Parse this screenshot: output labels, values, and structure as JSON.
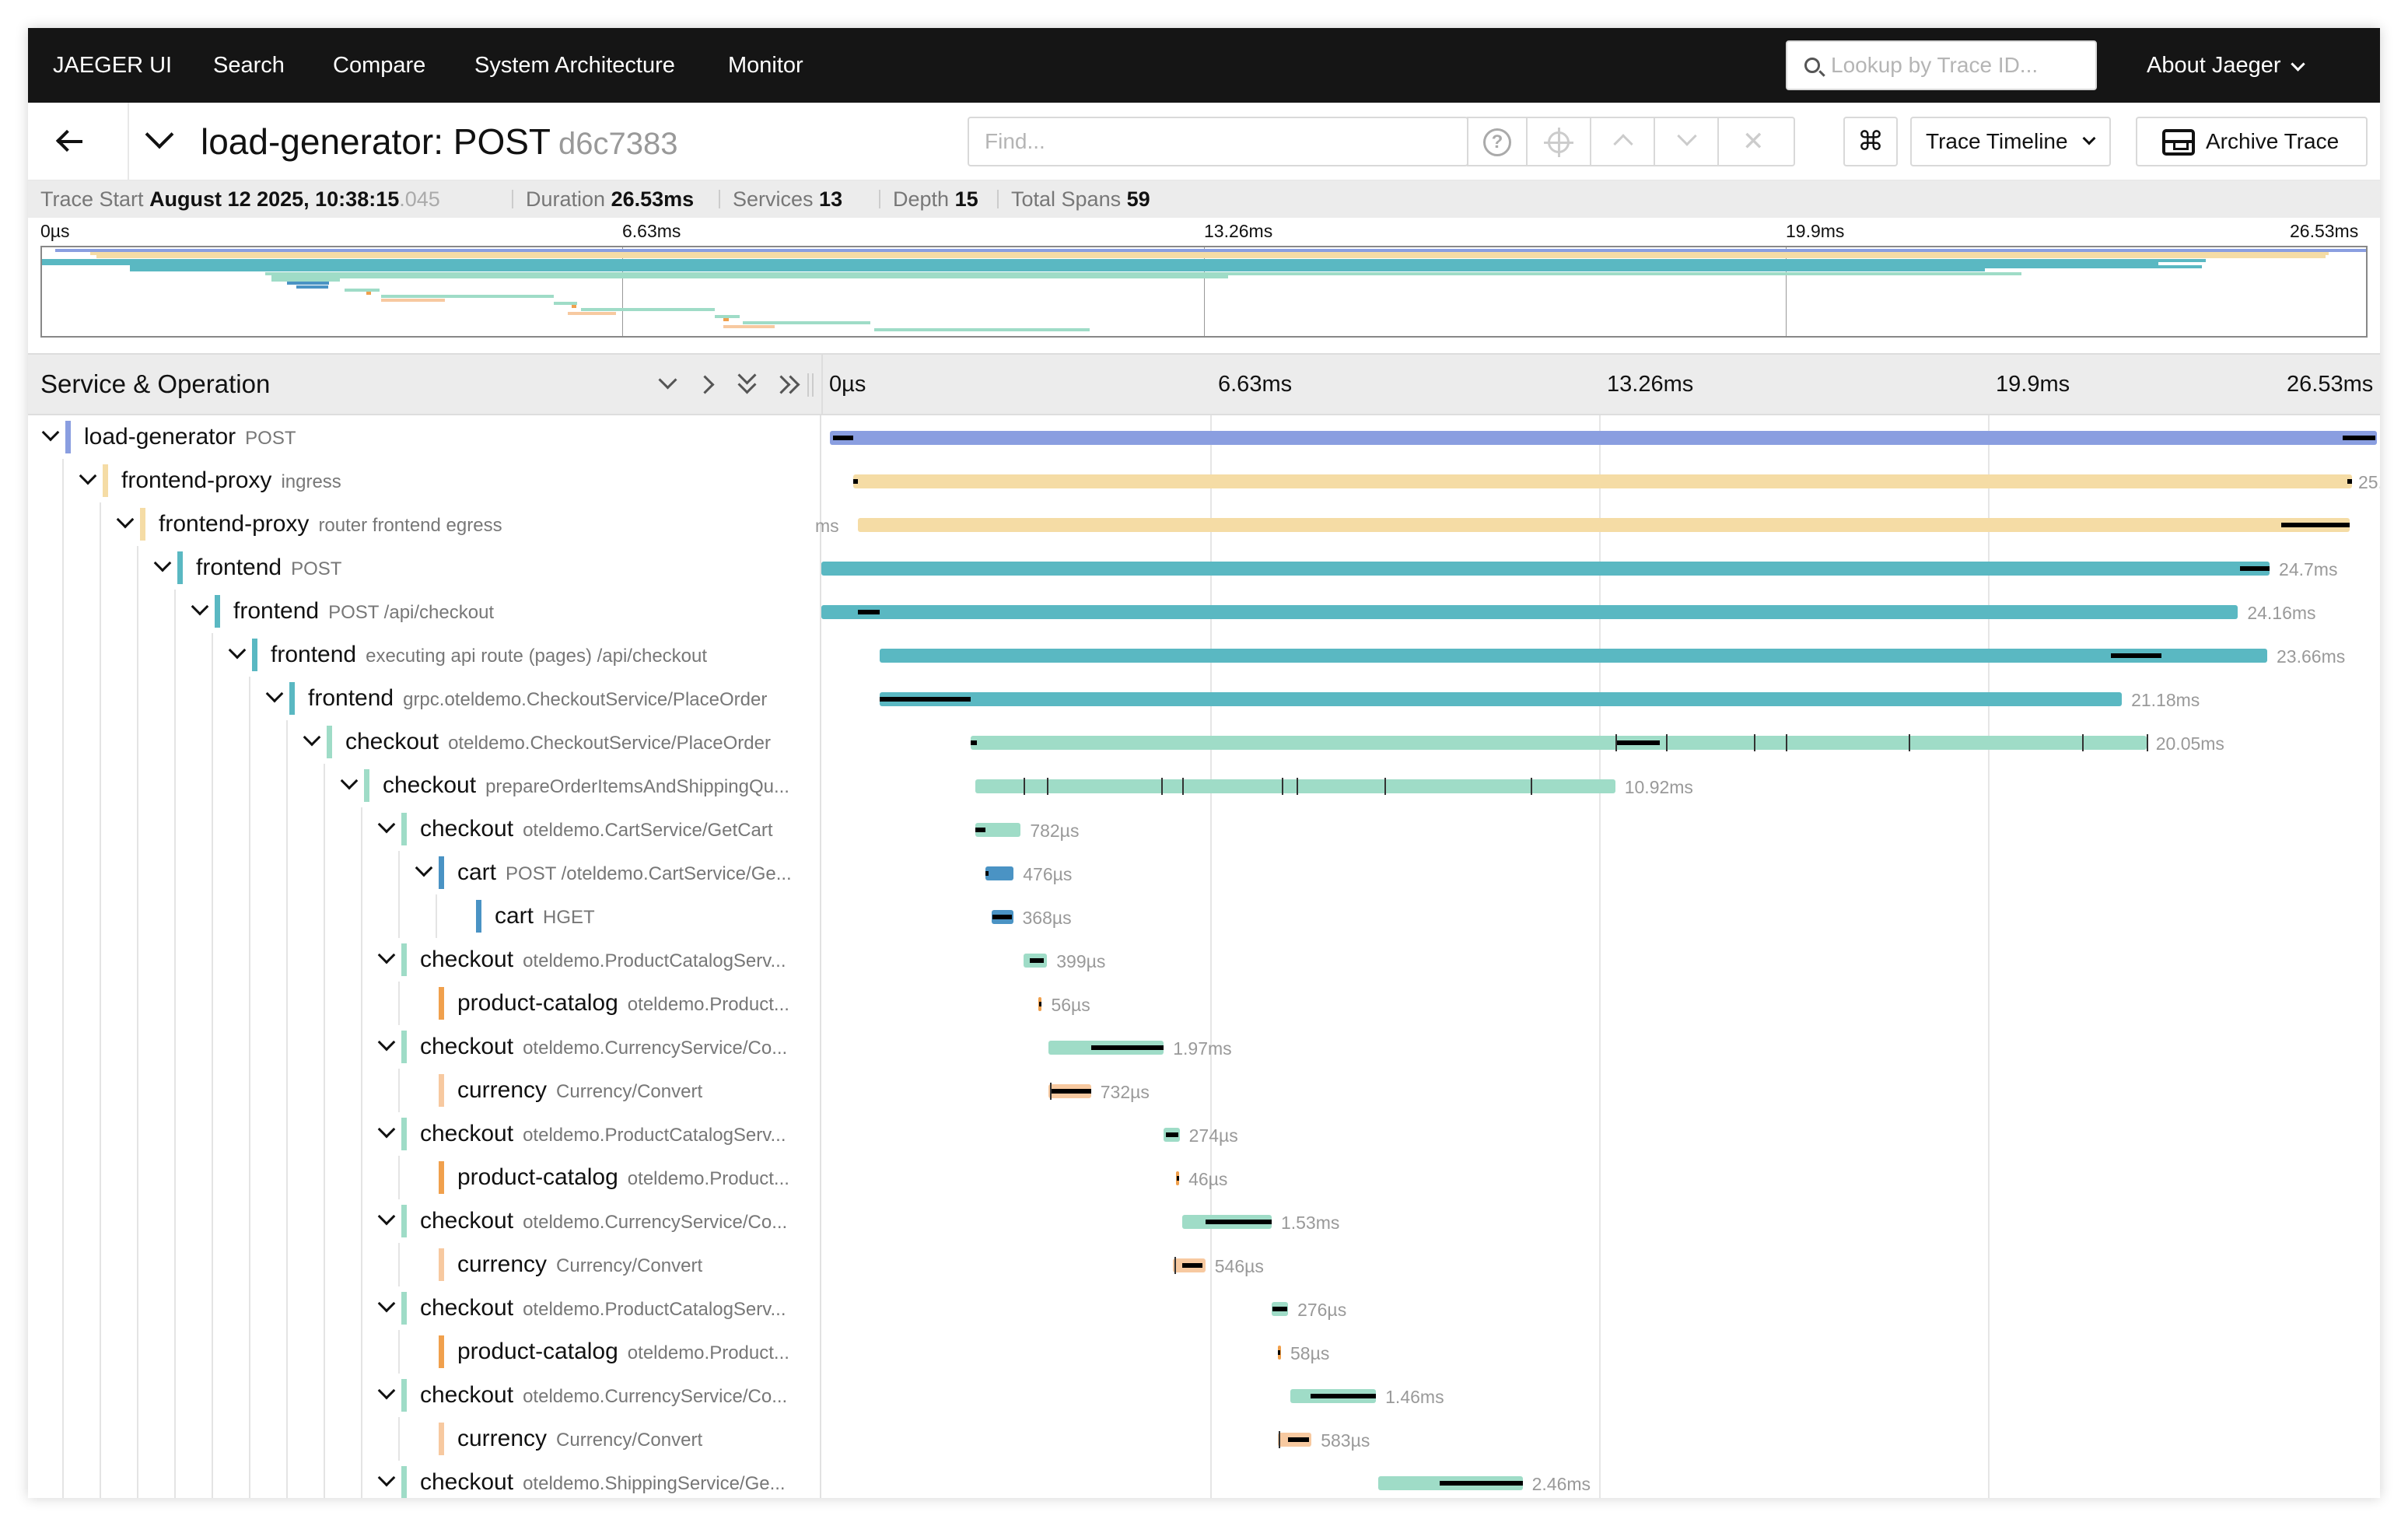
{
  "nav": {
    "brand": "JAEGER UI",
    "items": [
      "Search",
      "Compare",
      "System Architecture",
      "Monitor"
    ],
    "lookup_placeholder": "Lookup by Trace ID...",
    "about": "About Jaeger"
  },
  "trace": {
    "title": "load-generator: POST",
    "trace_id": "d6c7383",
    "find_placeholder": "Find...",
    "view_select": "Trace Timeline",
    "archive_label": "Archive Trace",
    "help_glyph": "?",
    "clear_glyph": "✕",
    "kbd_glyph": "⌘"
  },
  "summary": {
    "start_label": "Trace Start",
    "start_value": "August 12 2025, 10:38:15",
    "start_ms": ".045",
    "duration_label": "Duration",
    "duration_value": "26.53ms",
    "services_label": "Services",
    "services_value": "13",
    "depth_label": "Depth",
    "depth_value": "15",
    "spans_label": "Total Spans",
    "spans_value": "59"
  },
  "ticks": [
    "0µs",
    "6.63ms",
    "13.26ms",
    "19.9ms",
    "26.53ms"
  ],
  "timeline": {
    "header_title": "Service & Operation",
    "total_ms": 26.53
  },
  "colors": {
    "load-generator": "#8a9ee0",
    "frontend-proxy": "#f5dca5",
    "frontend": "#5ab8c2",
    "checkout": "#9fdcc7",
    "cart": "#4a93c4",
    "product-catalog": "#f0a04d",
    "currency": "#f7c9a0"
  },
  "spans": [
    {
      "depth": 0,
      "service": "load-generator",
      "op": "POST",
      "toggle": true,
      "start_ms": 0.15,
      "dur_ms": 26.53,
      "label": "",
      "self": [
        [
          0.2,
          0.55
        ],
        [
          25.95,
          26.5
        ]
      ]
    },
    {
      "depth": 1,
      "service": "frontend-proxy",
      "op": "ingress",
      "toggle": true,
      "start_ms": 0.55,
      "dur_ms": 25.55,
      "label": "25.",
      "label_pos": "right-edge",
      "self": [
        [
          0.55,
          0.62
        ],
        [
          26.02,
          26.1
        ]
      ]
    },
    {
      "depth": 2,
      "service": "frontend-proxy",
      "op": "router frontend egress",
      "toggle": true,
      "start_ms": 0.62,
      "dur_ms": 25.45,
      "label": "ms",
      "label_pos": "left-edge",
      "self": [
        [
          24.9,
          26.07
        ]
      ]
    },
    {
      "depth": 3,
      "service": "frontend",
      "op": "POST",
      "toggle": true,
      "start_ms": 0.0,
      "dur_ms": 24.7,
      "label": "24.7ms",
      "self": [
        [
          24.2,
          24.7
        ]
      ]
    },
    {
      "depth": 4,
      "service": "frontend",
      "op": "POST /api/checkout",
      "toggle": true,
      "start_ms": 0.0,
      "dur_ms": 24.16,
      "label": "24.16ms",
      "self": [
        [
          0.62,
          1.0
        ]
      ]
    },
    {
      "depth": 5,
      "service": "frontend",
      "op": "executing api route (pages) /api/checkout",
      "toggle": true,
      "start_ms": 1.0,
      "dur_ms": 23.66,
      "label": "23.66ms",
      "self": [
        [
          22.0,
          22.85
        ]
      ]
    },
    {
      "depth": 6,
      "service": "frontend",
      "op": "grpc.oteldemo.CheckoutService/PlaceOrder",
      "toggle": true,
      "start_ms": 1.0,
      "dur_ms": 21.18,
      "label": "21.18ms",
      "self": [
        [
          1.0,
          2.55
        ]
      ]
    },
    {
      "depth": 7,
      "service": "checkout",
      "op": "oteldemo.CheckoutService/PlaceOrder",
      "toggle": true,
      "start_ms": 2.55,
      "dur_ms": 20.05,
      "label": "20.05ms",
      "self": [
        [
          2.55,
          2.65
        ],
        [
          13.55,
          14.3
        ]
      ],
      "ticks": [
        13.55,
        14.4,
        15.9,
        16.45,
        18.55,
        21.5,
        22.6
      ]
    },
    {
      "depth": 8,
      "service": "checkout",
      "op": "prepareOrderItemsAndShippingQu...",
      "toggle": true,
      "start_ms": 2.62,
      "dur_ms": 10.92,
      "label": "10.92ms",
      "self": [],
      "ticks": [
        3.45,
        3.85,
        5.8,
        6.15,
        7.85,
        8.1,
        9.6,
        12.1
      ]
    },
    {
      "depth": 9,
      "service": "checkout",
      "op": "oteldemo.CartService/GetCart",
      "toggle": true,
      "start_ms": 2.62,
      "dur_ms": 0.78,
      "label": "782µs",
      "self": [
        [
          2.62,
          2.8
        ]
      ]
    },
    {
      "depth": 10,
      "service": "cart",
      "op": "POST /oteldemo.CartService/Ge...",
      "toggle": true,
      "start_ms": 2.8,
      "dur_ms": 0.48,
      "label": "476µs",
      "self": [
        [
          2.8,
          2.85
        ]
      ]
    },
    {
      "depth": 11,
      "service": "cart",
      "op": "HGET",
      "toggle": false,
      "start_ms": 2.9,
      "dur_ms": 0.37,
      "label": "368µs",
      "self": [
        [
          2.92,
          3.25
        ]
      ]
    },
    {
      "depth": 9,
      "service": "checkout",
      "op": "oteldemo.ProductCatalogServ...",
      "toggle": true,
      "start_ms": 3.45,
      "dur_ms": 0.4,
      "label": "399µs",
      "self": [
        [
          3.55,
          3.8
        ]
      ]
    },
    {
      "depth": 10,
      "service": "product-catalog",
      "op": "oteldemo.Product...",
      "toggle": false,
      "start_ms": 3.7,
      "dur_ms": 0.06,
      "label": "56µs",
      "self": [
        [
          3.72,
          3.76
        ]
      ]
    },
    {
      "depth": 9,
      "service": "checkout",
      "op": "oteldemo.CurrencyService/Co...",
      "toggle": true,
      "start_ms": 3.87,
      "dur_ms": 1.97,
      "label": "1.97ms",
      "self": [
        [
          4.6,
          5.84
        ]
      ]
    },
    {
      "depth": 10,
      "service": "currency",
      "op": "Currency/Convert",
      "toggle": false,
      "start_ms": 3.87,
      "dur_ms": 0.73,
      "label": "732µs",
      "self": [
        [
          3.9,
          4.6
        ]
      ],
      "ticks": [
        3.9
      ]
    },
    {
      "depth": 9,
      "service": "checkout",
      "op": "oteldemo.ProductCatalogServ...",
      "toggle": true,
      "start_ms": 5.84,
      "dur_ms": 0.27,
      "label": "274µs",
      "self": [
        [
          5.87,
          6.09
        ]
      ]
    },
    {
      "depth": 10,
      "service": "product-catalog",
      "op": "oteldemo.Product...",
      "toggle": false,
      "start_ms": 6.05,
      "dur_ms": 0.05,
      "label": "46µs",
      "self": [
        [
          6.06,
          6.09
        ]
      ]
    },
    {
      "depth": 9,
      "service": "checkout",
      "op": "oteldemo.CurrencyService/Co...",
      "toggle": true,
      "start_ms": 6.15,
      "dur_ms": 1.53,
      "label": "1.53ms",
      "self": [
        [
          6.55,
          7.68
        ]
      ]
    },
    {
      "depth": 10,
      "service": "currency",
      "op": "Currency/Convert",
      "toggle": false,
      "start_ms": 6.0,
      "dur_ms": 0.55,
      "label": "546µs",
      "self": [
        [
          6.15,
          6.5
        ]
      ],
      "ticks": [
        6.02
      ]
    },
    {
      "depth": 9,
      "service": "checkout",
      "op": "oteldemo.ProductCatalogServ...",
      "toggle": true,
      "start_ms": 7.68,
      "dur_ms": 0.28,
      "label": "276µs",
      "self": [
        [
          7.7,
          7.94
        ]
      ]
    },
    {
      "depth": 10,
      "service": "product-catalog",
      "op": "oteldemo.Product...",
      "toggle": false,
      "start_ms": 7.78,
      "dur_ms": 0.06,
      "label": "58µs",
      "self": [
        [
          7.79,
          7.83
        ]
      ]
    },
    {
      "depth": 9,
      "service": "checkout",
      "op": "oteldemo.CurrencyService/Co...",
      "toggle": true,
      "start_ms": 8.0,
      "dur_ms": 1.46,
      "label": "1.46ms",
      "self": [
        [
          8.35,
          9.46
        ]
      ]
    },
    {
      "depth": 10,
      "service": "currency",
      "op": "Currency/Convert",
      "toggle": false,
      "start_ms": 7.78,
      "dur_ms": 0.58,
      "label": "583µs",
      "self": [
        [
          7.96,
          8.32
        ]
      ],
      "ticks": [
        7.8
      ]
    },
    {
      "depth": 9,
      "service": "checkout",
      "op": "oteldemo.ShippingService/Ge...",
      "toggle": true,
      "start_ms": 9.5,
      "dur_ms": 2.46,
      "label": "2.46ms",
      "self": [
        [
          10.55,
          11.96
        ]
      ]
    }
  ]
}
